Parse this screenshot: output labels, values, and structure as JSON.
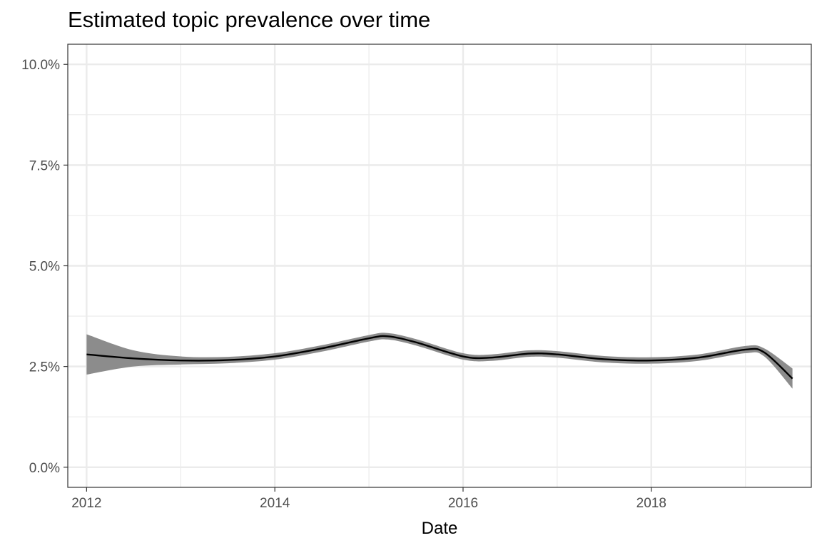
{
  "chart_data": {
    "type": "line",
    "title": "Estimated topic prevalence over time",
    "xlabel": "Date",
    "ylabel": "",
    "xlim": [
      2011.8,
      2019.7
    ],
    "ylim": [
      -0.5,
      10.5
    ],
    "x_ticks": [
      2012,
      2014,
      2016,
      2018
    ],
    "x_tick_labels": [
      "2012",
      "2014",
      "2016",
      "2018"
    ],
    "y_ticks": [
      0,
      2.5,
      5,
      7.5,
      10
    ],
    "y_tick_labels": [
      "0.0%",
      "2.5%",
      "5.0%",
      "7.5%",
      "10.0%"
    ],
    "grid": true,
    "legend": "none",
    "colors": {
      "line": "#000000",
      "band": "#8c8c8c",
      "grid": "#ebebeb",
      "panel_border": "#333333"
    },
    "series": [
      {
        "x": [
          2012.0,
          2012.5,
          2013.0,
          2013.5,
          2014.0,
          2014.5,
          2015.0,
          2015.2,
          2015.5,
          2016.0,
          2016.3,
          2016.7,
          2017.0,
          2017.5,
          2018.0,
          2018.5,
          2019.0,
          2019.2,
          2019.5
        ],
        "y": [
          2.8,
          2.7,
          2.65,
          2.66,
          2.75,
          2.95,
          3.2,
          3.25,
          3.1,
          2.75,
          2.72,
          2.82,
          2.8,
          2.68,
          2.65,
          2.72,
          2.92,
          2.85,
          2.2
        ],
        "lower": [
          2.3,
          2.5,
          2.55,
          2.58,
          2.67,
          2.87,
          3.12,
          3.17,
          3.02,
          2.67,
          2.64,
          2.74,
          2.72,
          2.6,
          2.57,
          2.64,
          2.83,
          2.75,
          1.95
        ],
        "upper": [
          3.3,
          2.9,
          2.75,
          2.74,
          2.83,
          3.03,
          3.28,
          3.33,
          3.18,
          2.83,
          2.8,
          2.9,
          2.88,
          2.76,
          2.73,
          2.8,
          3.01,
          2.95,
          2.45
        ]
      }
    ]
  }
}
